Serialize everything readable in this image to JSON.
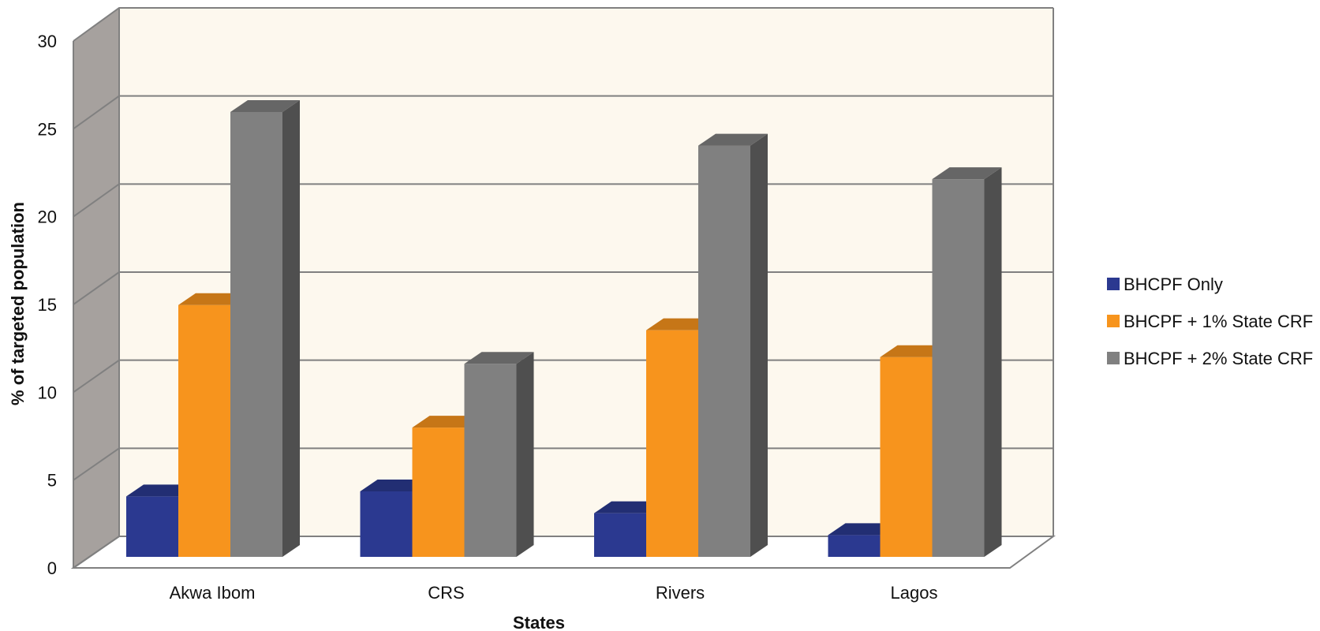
{
  "chart_data": {
    "type": "bar",
    "title": "",
    "xlabel": "States",
    "ylabel": "% of targeted population",
    "categories": [
      "Akwa Ibom",
      "CRS",
      "Rivers",
      "Lagos"
    ],
    "ylim": [
      0,
      30
    ],
    "yticks": [
      "0",
      "5",
      "10",
      "15",
      "20",
      "25",
      "30"
    ],
    "grid": true,
    "legend_position": "right",
    "series": [
      {
        "name": "BHCPF Only",
        "values": [
          3.6,
          3.9,
          2.6,
          1.3
        ],
        "color": "#2B3990"
      },
      {
        "name": "BHCPF + 1% State CRF",
        "values": [
          15.0,
          7.7,
          13.5,
          11.9
        ],
        "color": "#F7941D"
      },
      {
        "name": "BHCPF + 2% State CRF",
        "values": [
          26.5,
          11.5,
          24.5,
          22.5
        ],
        "color": "#808080"
      }
    ],
    "colors": {
      "back_wall": "#FDF8EE",
      "side_wall": "#A6A19E",
      "grid": "#808080"
    }
  }
}
